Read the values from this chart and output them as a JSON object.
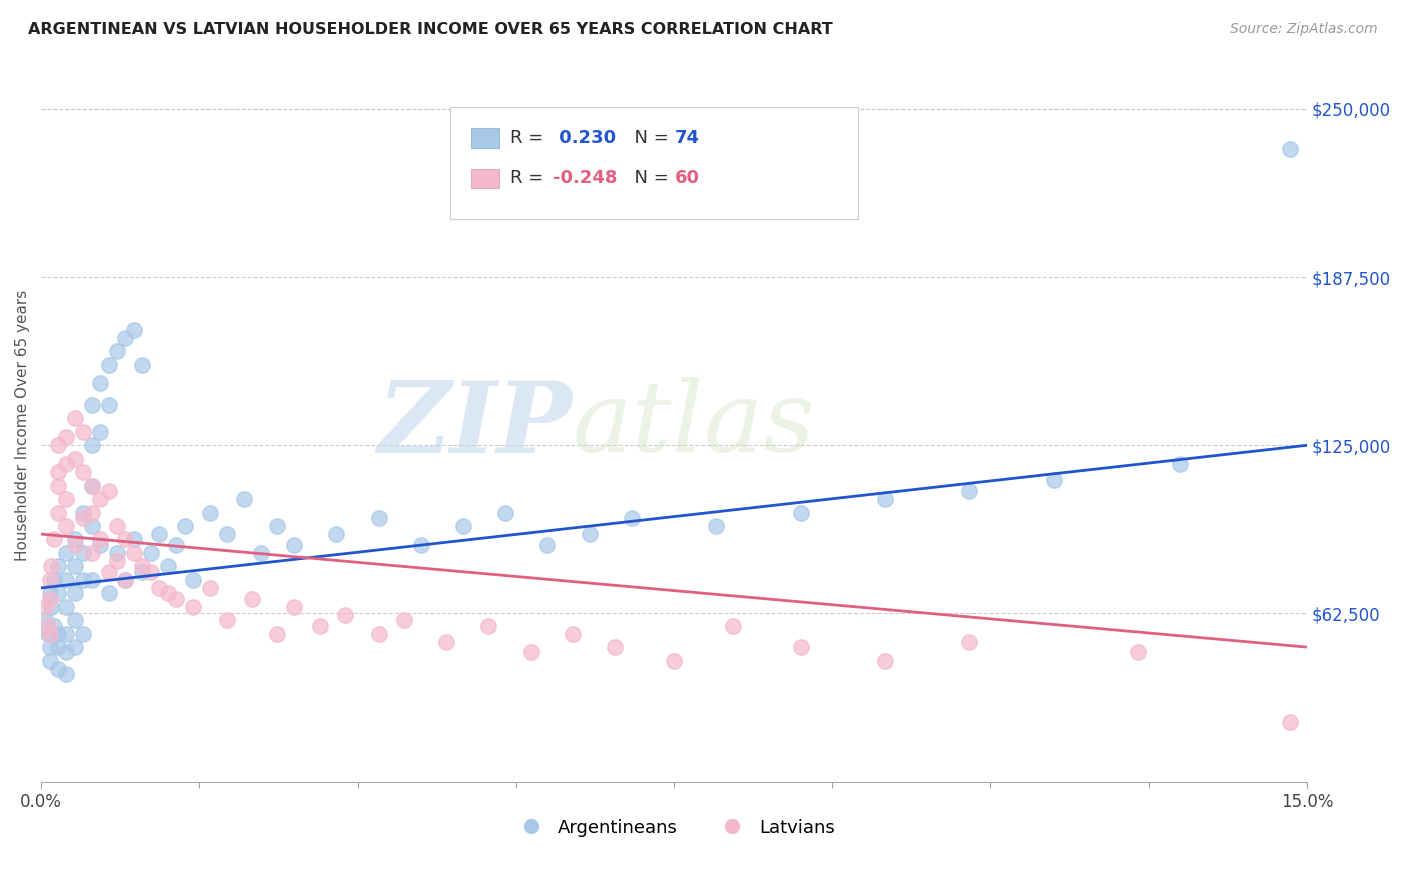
{
  "title": "ARGENTINEAN VS LATVIAN HOUSEHOLDER INCOME OVER 65 YEARS CORRELATION CHART",
  "source": "Source: ZipAtlas.com",
  "ylabel": "Householder Income Over 65 years",
  "legend_label1": "Argentineans",
  "legend_label2": "Latvians",
  "R1": 0.23,
  "N1": 74,
  "R2": -0.248,
  "N2": 60,
  "color_argentinean": "#a8c8e8",
  "color_latvian": "#f4b8cc",
  "color_line1": "#2255cc",
  "color_line2": "#e06080",
  "watermark_zip": "ZIP",
  "watermark_atlas": "atlas",
  "right_ytick_labels": [
    "$62,500",
    "$125,000",
    "$187,500",
    "$250,000"
  ],
  "right_ytick_values": [
    62500,
    125000,
    187500,
    250000
  ],
  "ylim": [
    0,
    265000
  ],
  "xlim": [
    0.0,
    0.15
  ],
  "blue_line_y0": 72000,
  "blue_line_y1": 125000,
  "pink_line_y0": 92000,
  "pink_line_y1": 50000,
  "argentinean_x": [
    0.0005,
    0.0008,
    0.001,
    0.001,
    0.001,
    0.0012,
    0.0015,
    0.0015,
    0.002,
    0.002,
    0.002,
    0.002,
    0.002,
    0.003,
    0.003,
    0.003,
    0.003,
    0.003,
    0.003,
    0.004,
    0.004,
    0.004,
    0.004,
    0.004,
    0.005,
    0.005,
    0.005,
    0.005,
    0.006,
    0.006,
    0.006,
    0.006,
    0.006,
    0.007,
    0.007,
    0.007,
    0.008,
    0.008,
    0.008,
    0.009,
    0.009,
    0.01,
    0.01,
    0.011,
    0.011,
    0.012,
    0.012,
    0.013,
    0.014,
    0.015,
    0.016,
    0.017,
    0.018,
    0.02,
    0.022,
    0.024,
    0.026,
    0.028,
    0.03,
    0.035,
    0.04,
    0.045,
    0.05,
    0.055,
    0.06,
    0.065,
    0.07,
    0.08,
    0.09,
    0.1,
    0.11,
    0.12,
    0.135,
    0.148
  ],
  "argentinean_y": [
    60000,
    55000,
    70000,
    50000,
    45000,
    65000,
    75000,
    58000,
    80000,
    70000,
    55000,
    50000,
    42000,
    85000,
    75000,
    65000,
    55000,
    48000,
    40000,
    90000,
    80000,
    70000,
    60000,
    50000,
    100000,
    85000,
    75000,
    55000,
    140000,
    125000,
    110000,
    95000,
    75000,
    148000,
    130000,
    88000,
    155000,
    140000,
    70000,
    160000,
    85000,
    165000,
    75000,
    168000,
    90000,
    155000,
    78000,
    85000,
    92000,
    80000,
    88000,
    95000,
    75000,
    100000,
    92000,
    105000,
    85000,
    95000,
    88000,
    92000,
    98000,
    88000,
    95000,
    100000,
    88000,
    92000,
    98000,
    95000,
    100000,
    105000,
    108000,
    112000,
    118000,
    235000
  ],
  "latvian_x": [
    0.0005,
    0.0008,
    0.001,
    0.001,
    0.001,
    0.0012,
    0.0015,
    0.002,
    0.002,
    0.002,
    0.002,
    0.003,
    0.003,
    0.003,
    0.003,
    0.004,
    0.004,
    0.004,
    0.005,
    0.005,
    0.005,
    0.006,
    0.006,
    0.006,
    0.007,
    0.007,
    0.008,
    0.008,
    0.009,
    0.009,
    0.01,
    0.01,
    0.011,
    0.012,
    0.013,
    0.014,
    0.015,
    0.016,
    0.018,
    0.02,
    0.022,
    0.025,
    0.028,
    0.03,
    0.033,
    0.036,
    0.04,
    0.043,
    0.048,
    0.053,
    0.058,
    0.063,
    0.068,
    0.075,
    0.082,
    0.09,
    0.1,
    0.11,
    0.13,
    0.148
  ],
  "latvian_y": [
    65000,
    58000,
    75000,
    68000,
    55000,
    80000,
    90000,
    100000,
    115000,
    125000,
    110000,
    128000,
    118000,
    105000,
    95000,
    135000,
    120000,
    88000,
    130000,
    115000,
    98000,
    110000,
    100000,
    85000,
    105000,
    90000,
    108000,
    78000,
    95000,
    82000,
    90000,
    75000,
    85000,
    80000,
    78000,
    72000,
    70000,
    68000,
    65000,
    72000,
    60000,
    68000,
    55000,
    65000,
    58000,
    62000,
    55000,
    60000,
    52000,
    58000,
    48000,
    55000,
    50000,
    45000,
    58000,
    50000,
    45000,
    52000,
    48000,
    22000
  ]
}
